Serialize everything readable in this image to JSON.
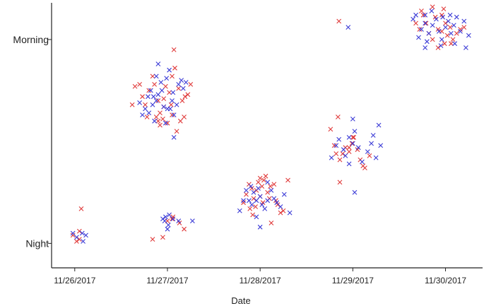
{
  "chart_data": {
    "type": "scatter",
    "title": "",
    "xlabel": "Date",
    "ylabel": "",
    "x_tick_labels": [
      "11/26/2017",
      "11/27/2017",
      "11/28/2017",
      "11/29/2017",
      "11/30/2017"
    ],
    "y_tick_labels": [
      "Morning",
      "Night"
    ],
    "x_range_days": [
      -0.25,
      4.4
    ],
    "y_range": [
      -0.12,
      1.18
    ],
    "grid": false,
    "legend": "none",
    "marker": "x",
    "series": [
      {
        "color": "#e03a3a",
        "points": [
          [
            0.05,
            0.02
          ],
          [
            0.05,
            0.06
          ],
          [
            -0.02,
            0.04
          ],
          [
            0.07,
            0.17
          ],
          [
            0.02,
            0.01
          ],
          [
            0.62,
            0.68
          ],
          [
            0.65,
            0.77
          ],
          [
            0.7,
            0.78
          ],
          [
            0.73,
            0.72
          ],
          [
            0.76,
            0.68
          ],
          [
            0.8,
            0.75
          ],
          [
            0.84,
            0.82
          ],
          [
            0.86,
            0.78
          ],
          [
            0.9,
            0.7
          ],
          [
            0.92,
            0.64
          ],
          [
            0.95,
            0.61
          ],
          [
            0.98,
            0.77
          ],
          [
            1.02,
            0.74
          ],
          [
            1.05,
            0.82
          ],
          [
            1.08,
            0.86
          ],
          [
            1.12,
            0.76
          ],
          [
            1.16,
            0.7
          ],
          [
            1.19,
            0.72
          ],
          [
            1.22,
            0.73
          ],
          [
            1.25,
            0.78
          ],
          [
            0.88,
            0.62
          ],
          [
            0.92,
            0.58
          ],
          [
            0.96,
            0.67
          ],
          [
            1.0,
            0.59
          ],
          [
            1.05,
            0.63
          ],
          [
            1.1,
            0.55
          ],
          [
            1.14,
            0.6
          ],
          [
            1.18,
            0.62
          ],
          [
            0.78,
            0.62
          ],
          [
            1.04,
            0.68
          ],
          [
            0.96,
            0.71
          ],
          [
            1.07,
            0.95
          ],
          [
            0.9,
            0.6
          ],
          [
            0.84,
            0.02
          ],
          [
            0.95,
            0.03
          ],
          [
            1.0,
            0.11
          ],
          [
            1.05,
            0.12
          ],
          [
            1.13,
            0.1
          ],
          [
            1.18,
            0.07
          ],
          [
            1.06,
            0.13
          ],
          [
            1.82,
            0.2
          ],
          [
            1.85,
            0.24
          ],
          [
            1.88,
            0.29
          ],
          [
            1.91,
            0.27
          ],
          [
            1.93,
            0.22
          ],
          [
            1.96,
            0.26
          ],
          [
            1.98,
            0.3
          ],
          [
            2.0,
            0.23
          ],
          [
            2.02,
            0.28
          ],
          [
            2.04,
            0.31
          ],
          [
            2.06,
            0.33
          ],
          [
            2.08,
            0.25
          ],
          [
            2.11,
            0.28
          ],
          [
            2.15,
            0.29
          ],
          [
            2.17,
            0.21
          ],
          [
            2.19,
            0.19
          ],
          [
            2.22,
            0.15
          ],
          [
            2.25,
            0.16
          ],
          [
            1.95,
            0.18
          ],
          [
            1.89,
            0.17
          ],
          [
            2.03,
            0.2
          ],
          [
            2.1,
            0.22
          ],
          [
            2.0,
            0.32
          ],
          [
            2.3,
            0.31
          ],
          [
            1.92,
            0.14
          ],
          [
            2.12,
            0.1
          ],
          [
            2.8,
            0.48
          ],
          [
            2.82,
            0.44
          ],
          [
            2.86,
            0.41
          ],
          [
            2.89,
            0.44
          ],
          [
            2.92,
            0.47
          ],
          [
            2.96,
            0.45
          ],
          [
            2.99,
            0.49
          ],
          [
            3.01,
            0.52
          ],
          [
            3.05,
            0.46
          ],
          [
            3.08,
            0.41
          ],
          [
            3.11,
            0.38
          ],
          [
            3.13,
            0.37
          ],
          [
            3.18,
            0.43
          ],
          [
            2.86,
            0.3
          ],
          [
            2.76,
            0.56
          ],
          [
            2.96,
            0.47
          ],
          [
            3.0,
            0.52
          ],
          [
            2.84,
            0.62
          ],
          [
            3.68,
            1.08
          ],
          [
            3.72,
            1.05
          ],
          [
            3.76,
            1.12
          ],
          [
            3.79,
            1.08
          ],
          [
            3.82,
            1.03
          ],
          [
            3.86,
            1.0
          ],
          [
            3.89,
            1.11
          ],
          [
            3.92,
            1.05
          ],
          [
            3.96,
            1.04
          ],
          [
            3.99,
            0.98
          ],
          [
            4.02,
            1.02
          ],
          [
            4.05,
            1.06
          ],
          [
            4.08,
            1.0
          ],
          [
            4.12,
            1.03
          ],
          [
            4.16,
            1.05
          ],
          [
            4.2,
            1.06
          ],
          [
            3.74,
            1.14
          ],
          [
            3.86,
            1.16
          ],
          [
            3.96,
            1.12
          ],
          [
            4.0,
            1.08
          ],
          [
            3.92,
            0.96
          ],
          [
            3.98,
            1.15
          ],
          [
            4.06,
            0.98
          ],
          [
            2.85,
            1.09
          ]
        ]
      },
      {
        "color": "#3a3ad6",
        "points": [
          [
            -0.02,
            0.05
          ],
          [
            0.08,
            0.05
          ],
          [
            0.12,
            0.04
          ],
          [
            0.02,
            0.03
          ],
          [
            0.09,
            0.01
          ],
          [
            0.7,
            0.69
          ],
          [
            0.73,
            0.63
          ],
          [
            0.76,
            0.66
          ],
          [
            0.79,
            0.72
          ],
          [
            0.82,
            0.75
          ],
          [
            0.85,
            0.72
          ],
          [
            0.88,
            0.82
          ],
          [
            0.9,
            0.73
          ],
          [
            0.93,
            0.79
          ],
          [
            0.96,
            0.67
          ],
          [
            0.99,
            0.81
          ],
          [
            1.02,
            0.85
          ],
          [
            1.05,
            0.7
          ],
          [
            1.07,
            0.63
          ],
          [
            1.1,
            0.68
          ],
          [
            1.12,
            0.78
          ],
          [
            1.15,
            0.8
          ],
          [
            1.17,
            0.76
          ],
          [
            1.2,
            0.79
          ],
          [
            0.8,
            0.64
          ],
          [
            0.84,
            0.68
          ],
          [
            0.98,
            0.59
          ],
          [
            1.03,
            0.66
          ],
          [
            1.06,
            0.74
          ],
          [
            0.94,
            0.75
          ],
          [
            0.86,
            0.6
          ],
          [
            1.0,
            0.66
          ],
          [
            1.07,
            0.52
          ],
          [
            0.9,
            0.88
          ],
          [
            0.88,
            0.7
          ],
          [
            0.95,
            0.12
          ],
          [
            0.98,
            0.13
          ],
          [
            1.02,
            0.14
          ],
          [
            1.06,
            0.12
          ],
          [
            1.12,
            0.11
          ],
          [
            0.97,
            0.11
          ],
          [
            1.01,
            0.09
          ],
          [
            1.27,
            0.11
          ],
          [
            1.0,
            0.07
          ],
          [
            1.78,
            0.16
          ],
          [
            1.82,
            0.21
          ],
          [
            1.85,
            0.26
          ],
          [
            1.88,
            0.21
          ],
          [
            1.91,
            0.19
          ],
          [
            1.93,
            0.25
          ],
          [
            1.96,
            0.21
          ],
          [
            1.98,
            0.27
          ],
          [
            2.0,
            0.23
          ],
          [
            2.02,
            0.19
          ],
          [
            2.05,
            0.17
          ],
          [
            2.08,
            0.21
          ],
          [
            2.12,
            0.26
          ],
          [
            2.15,
            0.22
          ],
          [
            2.18,
            0.2
          ],
          [
            2.22,
            0.18
          ],
          [
            2.26,
            0.24
          ],
          [
            2.32,
            0.15
          ],
          [
            1.96,
            0.13
          ],
          [
            2.0,
            0.08
          ],
          [
            1.9,
            0.28
          ],
          [
            2.08,
            0.3
          ],
          [
            2.77,
            0.42
          ],
          [
            2.82,
            0.48
          ],
          [
            2.85,
            0.51
          ],
          [
            2.9,
            0.46
          ],
          [
            2.92,
            0.43
          ],
          [
            2.96,
            0.52
          ],
          [
            3.0,
            0.49
          ],
          [
            3.02,
            0.55
          ],
          [
            3.06,
            0.47
          ],
          [
            3.1,
            0.4
          ],
          [
            3.16,
            0.45
          ],
          [
            3.2,
            0.49
          ],
          [
            3.25,
            0.42
          ],
          [
            3.3,
            0.48
          ],
          [
            3.02,
            0.25
          ],
          [
            2.96,
            0.39
          ],
          [
            3.22,
            0.53
          ],
          [
            3.0,
            0.61
          ],
          [
            3.28,
            0.58
          ],
          [
            3.65,
            1.1
          ],
          [
            3.68,
            1.12
          ],
          [
            3.71,
            1.01
          ],
          [
            3.74,
            1.05
          ],
          [
            3.78,
            1.08
          ],
          [
            3.82,
            1.03
          ],
          [
            3.86,
            1.07
          ],
          [
            3.9,
            1.1
          ],
          [
            3.93,
            1.04
          ],
          [
            3.97,
            1.11
          ],
          [
            4.0,
            1.06
          ],
          [
            4.03,
            1.09
          ],
          [
            4.06,
            1.03
          ],
          [
            4.09,
            1.07
          ],
          [
            4.12,
            1.11
          ],
          [
            4.16,
            1.04
          ],
          [
            4.2,
            1.09
          ],
          [
            4.25,
            1.02
          ],
          [
            3.8,
            0.99
          ],
          [
            3.85,
            1.14
          ],
          [
            3.95,
            0.97
          ],
          [
            4.05,
            1.12
          ],
          [
            4.1,
            0.98
          ],
          [
            3.78,
            0.96
          ],
          [
            3.96,
            1.0
          ],
          [
            4.22,
            0.96
          ],
          [
            2.95,
            1.06
          ],
          [
            3.78,
            1.12
          ]
        ]
      }
    ]
  }
}
